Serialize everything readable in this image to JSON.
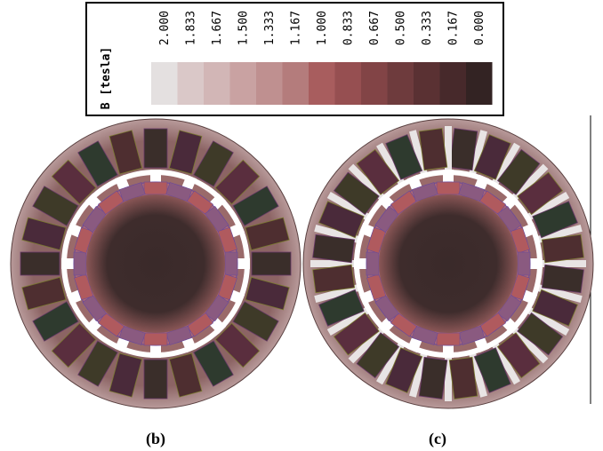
{
  "legend": {
    "title": "B [tesla]",
    "entries": [
      {
        "label": "2.000",
        "color": "#e4e0e0"
      },
      {
        "label": "1.833",
        "color": "#dac8c8"
      },
      {
        "label": "1.667",
        "color": "#d2b6b6"
      },
      {
        "label": "1.500",
        "color": "#c9a2a2"
      },
      {
        "label": "1.333",
        "color": "#bf9090"
      },
      {
        "label": "1.167",
        "color": "#b47c7c"
      },
      {
        "label": "1.000",
        "color": "#a85d5e"
      },
      {
        "label": "0.833",
        "color": "#964f51"
      },
      {
        "label": "0.667",
        "color": "#824446"
      },
      {
        "label": "0.500",
        "color": "#6e3b3d"
      },
      {
        "label": "0.333",
        "color": "#5a3133"
      },
      {
        "label": "0.167",
        "color": "#47292b"
      },
      {
        "label": "0.000",
        "color": "#332323"
      }
    ]
  },
  "subfigures": [
    {
      "label": "(b)"
    },
    {
      "label": "(c)"
    }
  ]
}
